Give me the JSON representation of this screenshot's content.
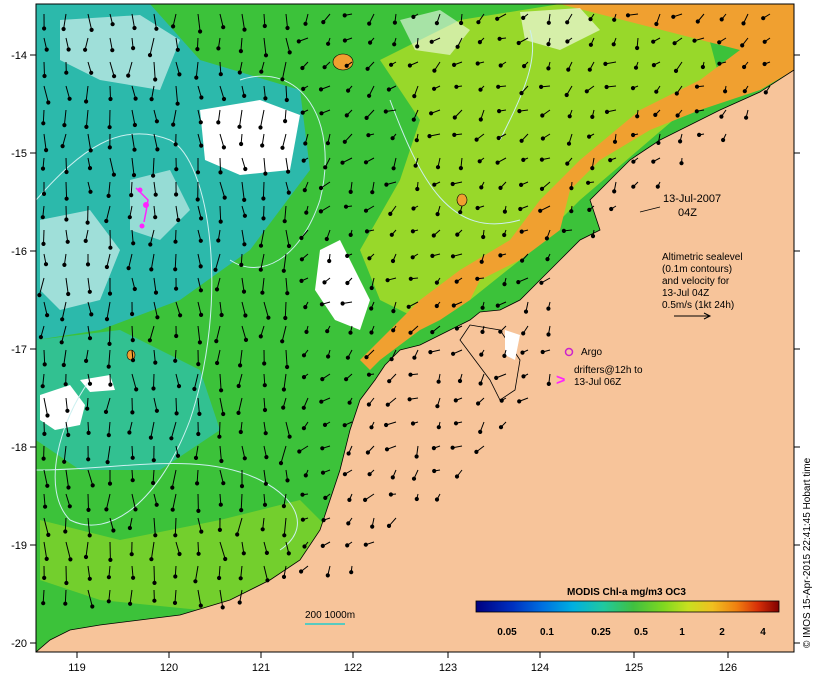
{
  "map": {
    "lon_range": [
      118.6,
      126.7
    ],
    "lat_range": [
      -20.1,
      -13.6
    ],
    "x_ticks": [
      "119",
      "120",
      "121",
      "122",
      "123",
      "124",
      "125",
      "126"
    ],
    "y_ticks": [
      "-14",
      "-15",
      "-16",
      "-17",
      "-18",
      "-19",
      "-20"
    ],
    "colors": {
      "land": "#f7c49a",
      "ocean_green": "#3cc23a",
      "ocean_cyan": "#2ab8b8",
      "ocean_yellow": "#b8e020",
      "coast_orange": "#f0a030",
      "cloud": "#ffffff",
      "argo": "#cc22cc",
      "drifter": "#ff22ff",
      "contour": "#ccf0f0",
      "scale_bar": "#22cccc"
    }
  },
  "annotations": {
    "date_line1": "13-Jul-2007",
    "date_line2": "04Z",
    "alt_line1": "Altimetric sealevel",
    "alt_line2": "(0.1m contours)",
    "alt_line3": "and velocity for",
    "alt_line4": "13-Jul 04Z",
    "alt_line5": "0.5m/s (1kt 24h)",
    "argo_label": "Argo",
    "drifter_line1": "drifters@12h to",
    "drifter_line2": "13-Jul 06Z",
    "drifter_symbol": ">",
    "scale_label": "200  1000m"
  },
  "colorbar": {
    "title": "MODIS Chl-a mg/m3 OC3",
    "ticks": [
      "0.05",
      "0.1",
      "0.25",
      "0.5",
      "1",
      "2",
      "4"
    ],
    "colors": [
      "#000080",
      "#0030c0",
      "#0070e0",
      "#00b0e0",
      "#20c8a0",
      "#40c040",
      "#80d820",
      "#c8e020",
      "#f0c020",
      "#f08010",
      "#d83008",
      "#800000"
    ]
  },
  "credit": "© IMOS 15-Apr-2015 22:41:45 Hobart time"
}
